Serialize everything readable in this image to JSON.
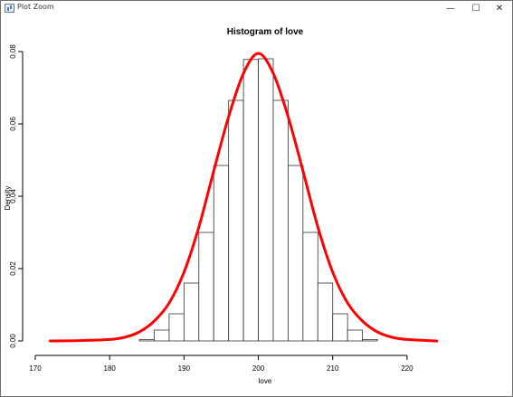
{
  "window": {
    "title": "Plot Zoom",
    "minimize_glyph": "—",
    "maximize_glyph": "☐",
    "close_glyph": "✕"
  },
  "chart_data": {
    "type": "bar",
    "title": "Histogram of love",
    "xlabel": "love",
    "ylabel": "Density",
    "xlim": [
      170,
      225
    ],
    "ylim": [
      0,
      0.08
    ],
    "x_ticks": [
      170,
      180,
      190,
      200,
      210,
      220
    ],
    "x_tick_labels": [
      "170",
      "180",
      "190",
      "200",
      "210",
      "220"
    ],
    "y_ticks": [
      0,
      0.02,
      0.04,
      0.06,
      0.08
    ],
    "y_tick_labels": [
      "0.00",
      "0.02",
      "0.04",
      "0.06",
      "0.08"
    ],
    "bin_edges": [
      184,
      186,
      188,
      190,
      192,
      194,
      196,
      198,
      200,
      202,
      204,
      206,
      208,
      210,
      212,
      214,
      216
    ],
    "densities": [
      0.0004,
      0.003,
      0.0075,
      0.016,
      0.03,
      0.0485,
      0.0665,
      0.0778,
      0.078,
      0.0665,
      0.0485,
      0.03,
      0.016,
      0.0075,
      0.003,
      0.0004
    ],
    "bar_fill": "#ffffff",
    "bar_stroke": "#333333",
    "density_curve": {
      "name": "density",
      "color": "#ff0000",
      "x": [
        172,
        176,
        180,
        182,
        184,
        186,
        188,
        190,
        192,
        194,
        196,
        198,
        200,
        202,
        204,
        206,
        208,
        210,
        212,
        214,
        216,
        218,
        220,
        224
      ],
      "y": [
        0,
        0.0001,
        0.0004,
        0.001,
        0.0025,
        0.0055,
        0.0105,
        0.019,
        0.0315,
        0.047,
        0.062,
        0.074,
        0.0795,
        0.074,
        0.062,
        0.047,
        0.0315,
        0.019,
        0.0105,
        0.0055,
        0.0025,
        0.001,
        0.0004,
        0
      ]
    }
  }
}
